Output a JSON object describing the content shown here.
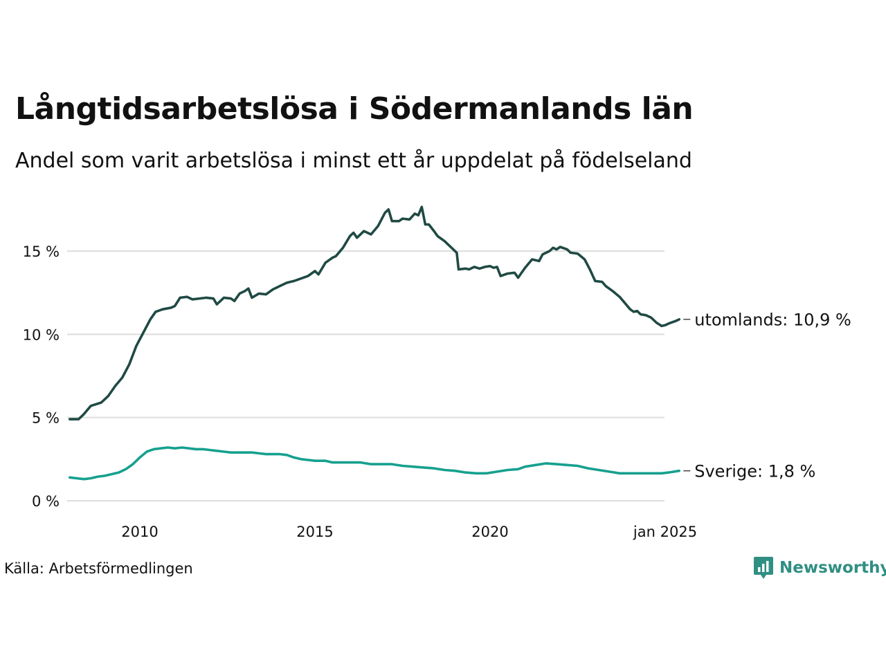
{
  "title": "Långtidsarbetslösa i Södermanlands län",
  "subtitle": "Andel som varit arbetslösa i minst ett år uppdelat på födelseland",
  "source": "Källa: Arbetsförmedlingen",
  "brand": {
    "name": "Newsworthy",
    "icon": "newsworthy-logo-icon"
  },
  "colors": {
    "utomlands": "#1f4a43",
    "sverige": "#16a08f",
    "grid": "#dddddd",
    "brand": "#2f8f83"
  },
  "chart_data": {
    "type": "line",
    "ylim": [
      0,
      17.8
    ],
    "xlim": [
      2008.0,
      2025.0
    ],
    "y_ticks": [
      {
        "value": 0,
        "label": "0 %"
      },
      {
        "value": 5,
        "label": "5 %"
      },
      {
        "value": 10,
        "label": "10 %"
      },
      {
        "value": 15,
        "label": "15 %"
      }
    ],
    "x_ticks": [
      {
        "value": 2010,
        "label": "2010"
      },
      {
        "value": 2015,
        "label": "2015"
      },
      {
        "value": 2020,
        "label": "2020"
      },
      {
        "value": 2025,
        "label": "jan 2025"
      }
    ],
    "grid": true,
    "series": [
      {
        "key": "utomlands",
        "name": "utomlands",
        "end_label": "utomlands: 10,9 %",
        "color": "#1f4a43",
        "points": [
          [
            2008.0,
            4.9
          ],
          [
            2008.25,
            4.9
          ],
          [
            2008.4,
            5.2
          ],
          [
            2008.6,
            5.7
          ],
          [
            2008.9,
            5.9
          ],
          [
            2009.1,
            6.3
          ],
          [
            2009.3,
            6.9
          ],
          [
            2009.5,
            7.4
          ],
          [
            2009.7,
            8.2
          ],
          [
            2009.9,
            9.3
          ],
          [
            2010.1,
            10.1
          ],
          [
            2010.3,
            10.9
          ],
          [
            2010.45,
            11.35
          ],
          [
            2010.65,
            11.5
          ],
          [
            2010.9,
            11.6
          ],
          [
            2011.0,
            11.7
          ],
          [
            2011.15,
            12.2
          ],
          [
            2011.35,
            12.25
          ],
          [
            2011.5,
            12.1
          ],
          [
            2011.7,
            12.15
          ],
          [
            2011.9,
            12.2
          ],
          [
            2012.1,
            12.15
          ],
          [
            2012.2,
            11.8
          ],
          [
            2012.4,
            12.2
          ],
          [
            2012.6,
            12.15
          ],
          [
            2012.7,
            12.0
          ],
          [
            2012.85,
            12.45
          ],
          [
            2013.0,
            12.6
          ],
          [
            2013.1,
            12.75
          ],
          [
            2013.2,
            12.2
          ],
          [
            2013.4,
            12.45
          ],
          [
            2013.6,
            12.4
          ],
          [
            2013.8,
            12.7
          ],
          [
            2014.0,
            12.9
          ],
          [
            2014.2,
            13.1
          ],
          [
            2014.4,
            13.2
          ],
          [
            2014.6,
            13.35
          ],
          [
            2014.8,
            13.5
          ],
          [
            2015.0,
            13.8
          ],
          [
            2015.1,
            13.6
          ],
          [
            2015.3,
            14.3
          ],
          [
            2015.5,
            14.6
          ],
          [
            2015.6,
            14.7
          ],
          [
            2015.8,
            15.2
          ],
          [
            2016.0,
            15.9
          ],
          [
            2016.1,
            16.1
          ],
          [
            2016.2,
            15.8
          ],
          [
            2016.4,
            16.2
          ],
          [
            2016.6,
            16.0
          ],
          [
            2016.8,
            16.5
          ],
          [
            2017.0,
            17.3
          ],
          [
            2017.1,
            17.5
          ],
          [
            2017.2,
            16.8
          ],
          [
            2017.4,
            16.8
          ],
          [
            2017.5,
            16.95
          ],
          [
            2017.7,
            16.9
          ],
          [
            2017.85,
            17.25
          ],
          [
            2017.95,
            17.15
          ],
          [
            2018.05,
            17.65
          ],
          [
            2018.15,
            16.6
          ],
          [
            2018.25,
            16.6
          ],
          [
            2018.4,
            16.2
          ],
          [
            2018.5,
            15.9
          ],
          [
            2018.7,
            15.6
          ],
          [
            2018.9,
            15.2
          ],
          [
            2019.05,
            14.9
          ],
          [
            2019.1,
            13.9
          ],
          [
            2019.3,
            13.95
          ],
          [
            2019.4,
            13.9
          ],
          [
            2019.55,
            14.05
          ],
          [
            2019.7,
            13.95
          ],
          [
            2019.85,
            14.05
          ],
          [
            2020.0,
            14.1
          ],
          [
            2020.1,
            14.0
          ],
          [
            2020.2,
            14.05
          ],
          [
            2020.3,
            13.5
          ],
          [
            2020.5,
            13.65
          ],
          [
            2020.7,
            13.7
          ],
          [
            2020.8,
            13.4
          ],
          [
            2021.0,
            14.0
          ],
          [
            2021.2,
            14.5
          ],
          [
            2021.4,
            14.4
          ],
          [
            2021.5,
            14.8
          ],
          [
            2021.7,
            15.0
          ],
          [
            2021.8,
            15.2
          ],
          [
            2021.9,
            15.1
          ],
          [
            2022.0,
            15.25
          ],
          [
            2022.2,
            15.1
          ],
          [
            2022.3,
            14.9
          ],
          [
            2022.5,
            14.85
          ],
          [
            2022.7,
            14.5
          ],
          [
            2022.85,
            13.9
          ],
          [
            2023.0,
            13.2
          ],
          [
            2023.2,
            13.15
          ],
          [
            2023.3,
            12.9
          ],
          [
            2023.5,
            12.6
          ],
          [
            2023.7,
            12.25
          ],
          [
            2023.8,
            12.0
          ],
          [
            2024.0,
            11.5
          ],
          [
            2024.1,
            11.35
          ],
          [
            2024.2,
            11.4
          ],
          [
            2024.3,
            11.2
          ],
          [
            2024.45,
            11.15
          ],
          [
            2024.6,
            11.0
          ],
          [
            2024.75,
            10.7
          ],
          [
            2024.9,
            10.5
          ],
          [
            2025.0,
            10.55
          ],
          [
            2025.1,
            10.65
          ],
          [
            2025.3,
            10.8
          ],
          [
            2025.4,
            10.9
          ]
        ]
      },
      {
        "key": "sverige",
        "name": "Sverige",
        "end_label": "Sverige:  1,8 %",
        "color": "#16a08f",
        "points": [
          [
            2008.0,
            1.4
          ],
          [
            2008.2,
            1.35
          ],
          [
            2008.4,
            1.3
          ],
          [
            2008.6,
            1.35
          ],
          [
            2008.8,
            1.45
          ],
          [
            2009.0,
            1.5
          ],
          [
            2009.2,
            1.6
          ],
          [
            2009.4,
            1.7
          ],
          [
            2009.6,
            1.9
          ],
          [
            2009.8,
            2.2
          ],
          [
            2010.0,
            2.6
          ],
          [
            2010.2,
            2.95
          ],
          [
            2010.4,
            3.1
          ],
          [
            2010.6,
            3.15
          ],
          [
            2010.8,
            3.2
          ],
          [
            2011.0,
            3.15
          ],
          [
            2011.2,
            3.2
          ],
          [
            2011.4,
            3.15
          ],
          [
            2011.6,
            3.1
          ],
          [
            2011.8,
            3.1
          ],
          [
            2012.0,
            3.05
          ],
          [
            2012.2,
            3.0
          ],
          [
            2012.4,
            2.95
          ],
          [
            2012.6,
            2.9
          ],
          [
            2012.8,
            2.9
          ],
          [
            2013.0,
            2.9
          ],
          [
            2013.2,
            2.9
          ],
          [
            2013.4,
            2.85
          ],
          [
            2013.6,
            2.8
          ],
          [
            2013.8,
            2.8
          ],
          [
            2014.0,
            2.8
          ],
          [
            2014.2,
            2.75
          ],
          [
            2014.4,
            2.6
          ],
          [
            2014.6,
            2.5
          ],
          [
            2014.8,
            2.45
          ],
          [
            2015.0,
            2.4
          ],
          [
            2015.3,
            2.4
          ],
          [
            2015.5,
            2.3
          ],
          [
            2015.8,
            2.3
          ],
          [
            2016.0,
            2.3
          ],
          [
            2016.3,
            2.3
          ],
          [
            2016.6,
            2.2
          ],
          [
            2016.9,
            2.2
          ],
          [
            2017.2,
            2.2
          ],
          [
            2017.5,
            2.1
          ],
          [
            2017.8,
            2.05
          ],
          [
            2018.1,
            2.0
          ],
          [
            2018.4,
            1.95
          ],
          [
            2018.7,
            1.85
          ],
          [
            2019.0,
            1.8
          ],
          [
            2019.3,
            1.7
          ],
          [
            2019.6,
            1.65
          ],
          [
            2019.9,
            1.65
          ],
          [
            2020.2,
            1.75
          ],
          [
            2020.5,
            1.85
          ],
          [
            2020.8,
            1.9
          ],
          [
            2021.0,
            2.05
          ],
          [
            2021.3,
            2.15
          ],
          [
            2021.6,
            2.25
          ],
          [
            2021.9,
            2.2
          ],
          [
            2022.2,
            2.15
          ],
          [
            2022.5,
            2.1
          ],
          [
            2022.8,
            1.95
          ],
          [
            2023.1,
            1.85
          ],
          [
            2023.4,
            1.75
          ],
          [
            2023.7,
            1.65
          ],
          [
            2024.0,
            1.65
          ],
          [
            2024.3,
            1.65
          ],
          [
            2024.6,
            1.65
          ],
          [
            2024.9,
            1.65
          ],
          [
            2025.1,
            1.7
          ],
          [
            2025.4,
            1.8
          ]
        ]
      }
    ]
  }
}
